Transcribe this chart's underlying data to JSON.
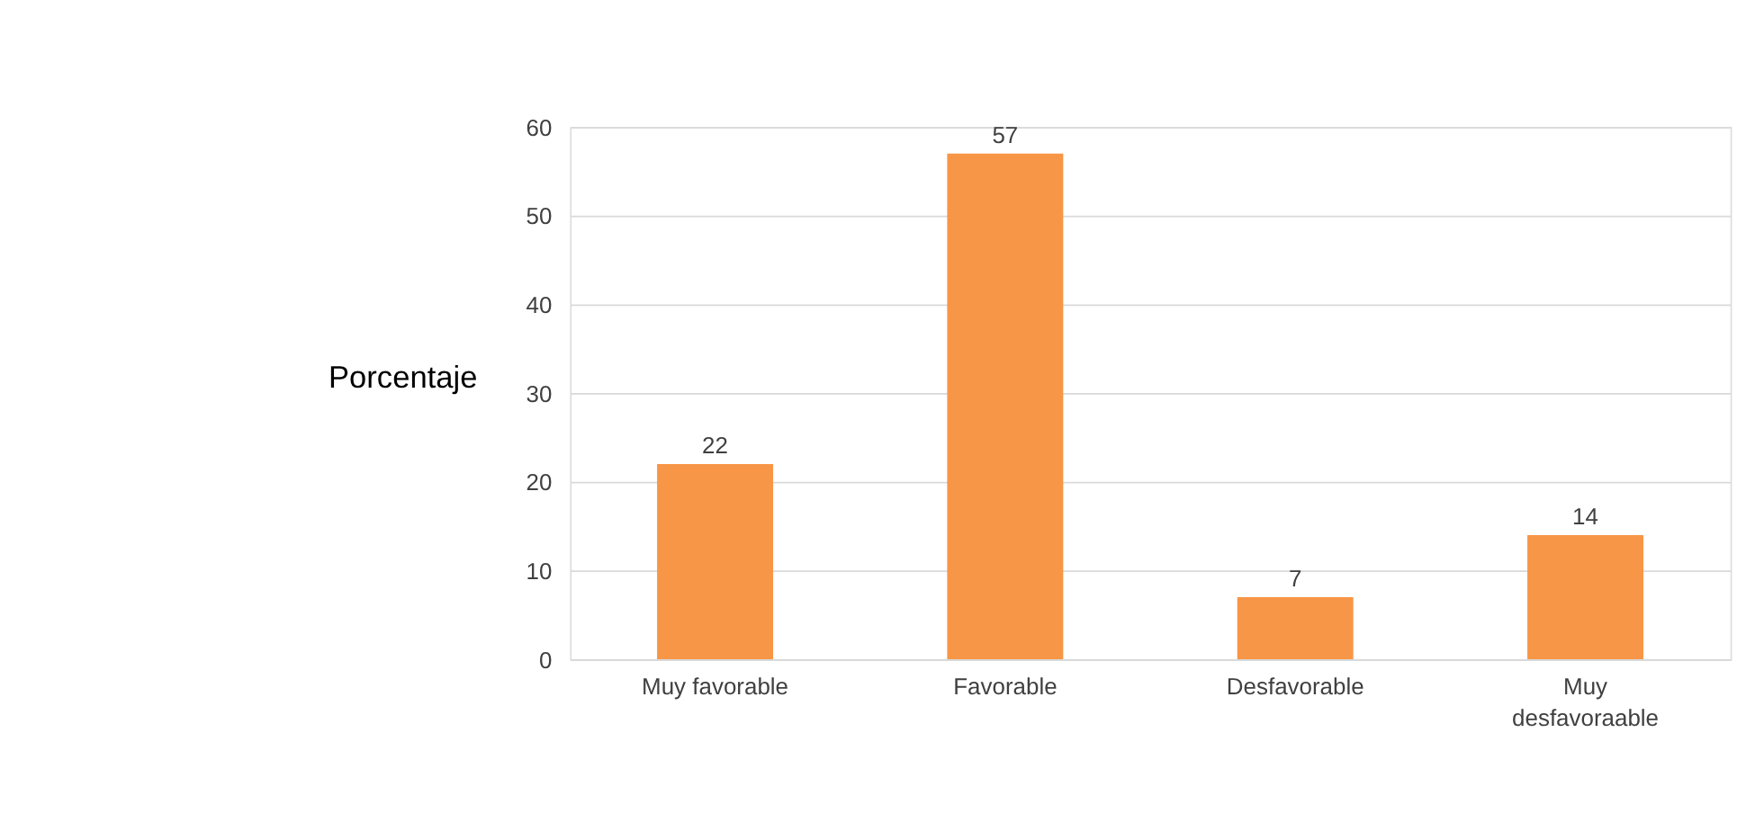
{
  "chart_data": {
    "type": "bar",
    "ylabel": "Porcentaje",
    "categories": [
      "Muy favorable",
      "Favorable",
      "Desfavorable",
      "Muy desfavoraable"
    ],
    "values": [
      22,
      57,
      7,
      14
    ],
    "color": "#f79646",
    "ylim": [
      0,
      60
    ],
    "yticks": [
      0,
      10,
      20,
      30,
      40,
      50,
      60
    ],
    "grid": "y",
    "data_labels": true
  }
}
